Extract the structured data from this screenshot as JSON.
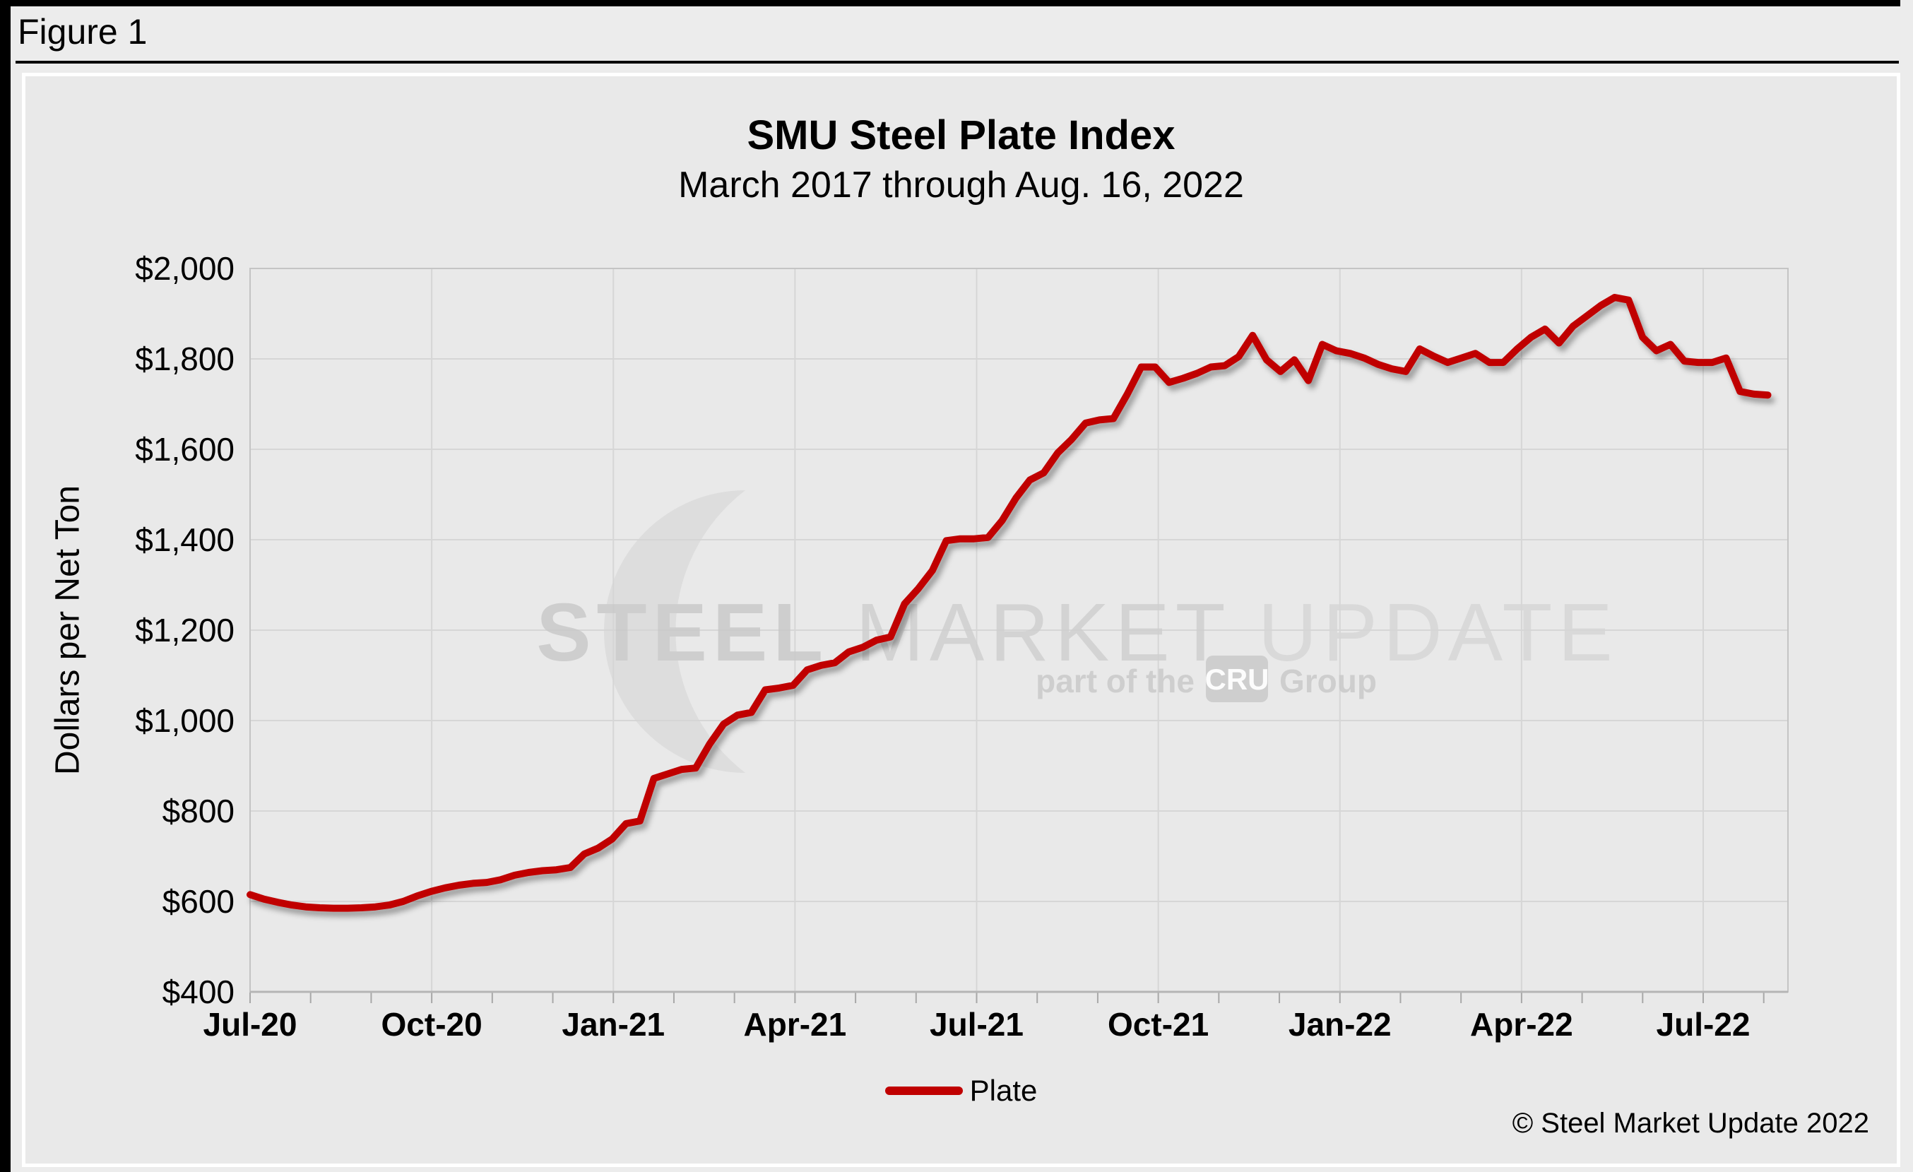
{
  "figure_label": "Figure 1",
  "chart": {
    "title": "SMU Steel Plate Index",
    "subtitle": "March 2017 through Aug. 16, 2022",
    "y_axis_label": "Dollars per Net Ton",
    "legend": [
      {
        "label": "Plate",
        "color": "#c00000"
      }
    ],
    "copyright": "© Steel Market Update 2022"
  },
  "watermark": {
    "brand_bold": "STEEL",
    "brand_mid": "MARKET",
    "brand_light": "UPDATE",
    "tagline_prefix": "part of the",
    "tagline_box": "CRU",
    "tagline_suffix": "Group"
  },
  "colors": {
    "line": "#c00000",
    "plot_background": "#e9e9e9",
    "gridline": "#d6d6d6",
    "plot_border": "#c4c4c4",
    "axis_line": "#b5b5b5",
    "minor_tick": "#a8a8a8",
    "watermark_gray": "#d0d0d0",
    "frame_black": "#000000"
  },
  "chart_data": {
    "type": "line",
    "title": "SMU Steel Plate Index",
    "subtitle": "March 2017 through Aug. 16, 2022",
    "xlabel": "",
    "ylabel": "Dollars per Net Ton",
    "ylim": [
      400,
      2000
    ],
    "y_ticks": [
      400,
      600,
      800,
      1000,
      1200,
      1400,
      1600,
      1800,
      2000
    ],
    "y_tick_labels": [
      "$400",
      "$600",
      "$800",
      "$1,000",
      "$1,200",
      "$1,400",
      "$1,600",
      "$1,800",
      "$2,000"
    ],
    "x_tick_labels": [
      "Jul-20",
      "Oct-20",
      "Jan-21",
      "Apr-21",
      "Jul-21",
      "Oct-21",
      "Jan-22",
      "Apr-22",
      "Jul-22"
    ],
    "x_tick_month_positions": [
      0,
      3,
      6,
      9,
      12,
      15,
      18,
      21,
      24
    ],
    "x_axis_months_total": 25.4,
    "x_minor_tick_unit": "month",
    "x_unit": "week",
    "months_per_point": 0.22998,
    "grid": true,
    "legend_position": "bottom",
    "series": [
      {
        "name": "Plate",
        "color": "#c00000",
        "values": [
          615,
          605,
          598,
          592,
          588,
          586,
          585,
          585,
          586,
          588,
          592,
          600,
          612,
          622,
          630,
          636,
          640,
          642,
          648,
          658,
          664,
          668,
          670,
          675,
          705,
          718,
          738,
          772,
          778,
          872,
          882,
          892,
          895,
          948,
          992,
          1012,
          1018,
          1068,
          1072,
          1078,
          1112,
          1122,
          1128,
          1152,
          1162,
          1178,
          1185,
          1258,
          1292,
          1332,
          1398,
          1402,
          1402,
          1405,
          1442,
          1492,
          1532,
          1548,
          1592,
          1622,
          1658,
          1665,
          1668,
          1722,
          1782,
          1782,
          1748,
          1757,
          1768,
          1782,
          1785,
          1805,
          1852,
          1798,
          1772,
          1798,
          1752,
          1832,
          1818,
          1812,
          1802,
          1788,
          1778,
          1772,
          1822,
          1806,
          1792,
          1802,
          1812,
          1792,
          1792,
          1822,
          1848,
          1866,
          1835,
          1872,
          1895,
          1918,
          1936,
          1930,
          1848,
          1818,
          1832,
          1795,
          1792,
          1792,
          1802,
          1728,
          1722,
          1720
        ]
      }
    ]
  }
}
